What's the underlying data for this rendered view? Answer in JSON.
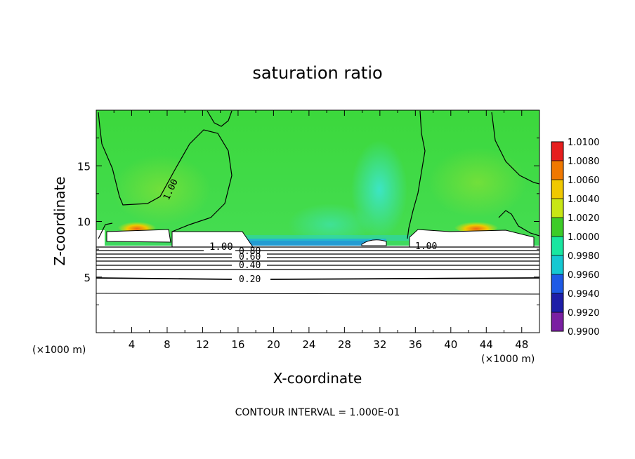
{
  "chart_data": {
    "type": "heatmap",
    "title": "saturation ratio",
    "xlabel": "X-coordinate",
    "ylabel": "Z-coordinate",
    "x_unit_left": "(×1000 m)",
    "x_unit_right": "(×1000 m)",
    "xlim": [
      0,
      50
    ],
    "ylim": [
      0,
      20
    ],
    "x_ticks": [
      4,
      8,
      12,
      16,
      20,
      24,
      28,
      32,
      36,
      40,
      44,
      48
    ],
    "y_ticks": [
      5,
      10,
      15
    ],
    "x_tick_labels": [
      "4",
      "8",
      "12",
      "16",
      "20",
      "24",
      "28",
      "32",
      "36",
      "40",
      "44",
      "48"
    ],
    "y_tick_labels": [
      "5",
      "10",
      "15"
    ],
    "grid": false,
    "colorbar": {
      "levels": [
        "0.9900",
        "0.9920",
        "0.9940",
        "0.9960",
        "0.9980",
        "1.0000",
        "1.0020",
        "1.0040",
        "1.0060",
        "1.0080",
        "1.0100"
      ],
      "colors": [
        "#7a1fa2",
        "#1e1ea8",
        "#1e5ae6",
        "#14c8d2",
        "#18e6a0",
        "#3ccc28",
        "#c8e614",
        "#f0c800",
        "#f07800",
        "#e61e1e",
        "#f0a0a0"
      ]
    },
    "contour_labels": [
      "1.00",
      "1.00",
      "0.80",
      "0.60",
      "0.40",
      "0.20",
      "1.00"
    ],
    "footer": "CONTOUR INTERVAL = 1.000E-01"
  }
}
